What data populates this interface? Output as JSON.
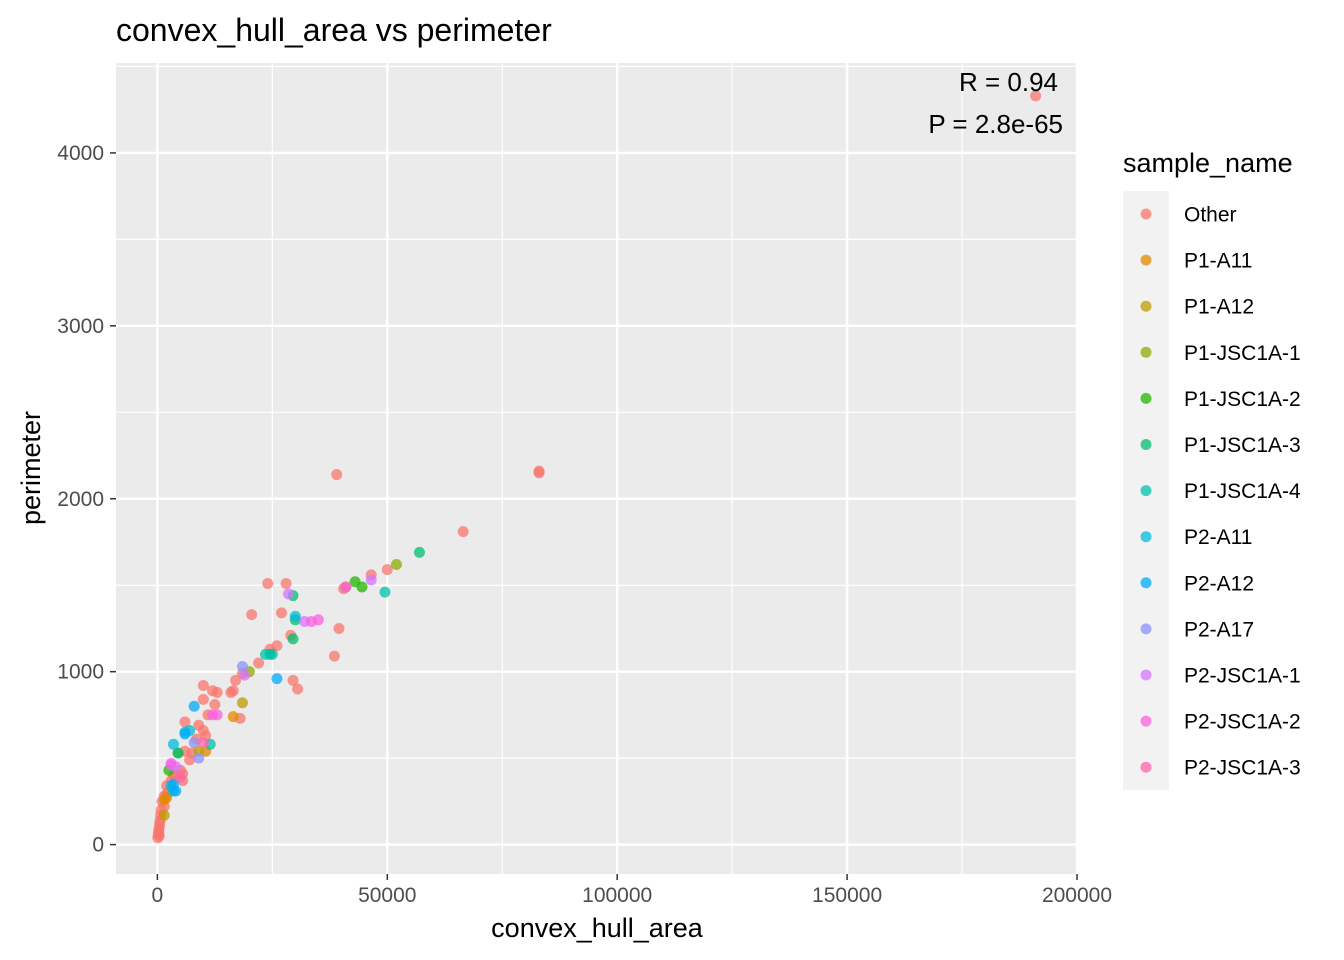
{
  "chart_data": {
    "type": "scatter",
    "title": "convex_hull_area vs perimeter",
    "xlabel": "convex_hull_area",
    "ylabel": "perimeter",
    "xlim": [
      -9000,
      200000
    ],
    "ylim": [
      -170,
      4520
    ],
    "x_ticks": [
      0,
      50000,
      100000,
      150000,
      200000
    ],
    "x_tick_labels": [
      "0",
      "50000",
      "100000",
      "150000",
      "200000"
    ],
    "y_ticks": [
      0,
      1000,
      2000,
      3000,
      4000
    ],
    "y_tick_labels": [
      "0",
      "1000",
      "2000",
      "3000",
      "4000"
    ],
    "grid": true,
    "legend_title": "sample_name",
    "legend_position": "right",
    "annotations": [
      "R = 0.94",
      "P = 2.8e-65"
    ],
    "series": [
      {
        "name": "Other",
        "color": "#F8766D",
        "points": [
          [
            191000,
            4330
          ],
          [
            83000,
            2160
          ],
          [
            83000,
            2150
          ],
          [
            66500,
            1810
          ],
          [
            50000,
            1590
          ],
          [
            46500,
            1560
          ],
          [
            39000,
            2140
          ],
          [
            39500,
            1250
          ],
          [
            38500,
            1090
          ],
          [
            40500,
            1480
          ],
          [
            28000,
            1510
          ],
          [
            24000,
            1510
          ],
          [
            27000,
            1340
          ],
          [
            29000,
            1210
          ],
          [
            26000,
            1150
          ],
          [
            24500,
            1130
          ],
          [
            29500,
            950
          ],
          [
            30500,
            900
          ],
          [
            22000,
            1050
          ],
          [
            20500,
            1330
          ],
          [
            18500,
            990
          ],
          [
            17000,
            950
          ],
          [
            16500,
            890
          ],
          [
            16000,
            880
          ],
          [
            13000,
            880
          ],
          [
            12000,
            890
          ],
          [
            18000,
            730
          ],
          [
            12500,
            810
          ],
          [
            11000,
            750
          ],
          [
            10000,
            920
          ],
          [
            10000,
            840
          ],
          [
            9000,
            690
          ],
          [
            10000,
            660
          ],
          [
            10500,
            630
          ],
          [
            8500,
            610
          ],
          [
            6000,
            710
          ],
          [
            6000,
            540
          ],
          [
            7500,
            530
          ],
          [
            7000,
            490
          ],
          [
            5000,
            430
          ],
          [
            5500,
            410
          ],
          [
            5500,
            370
          ],
          [
            4000,
            390
          ],
          [
            3500,
            400
          ],
          [
            3000,
            370
          ],
          [
            2000,
            340
          ],
          [
            2500,
            310
          ],
          [
            2000,
            290
          ],
          [
            1500,
            280
          ],
          [
            1000,
            250
          ],
          [
            1500,
            220
          ],
          [
            800,
            200
          ],
          [
            700,
            170
          ],
          [
            600,
            140
          ],
          [
            500,
            120
          ],
          [
            400,
            100
          ],
          [
            300,
            80
          ],
          [
            200,
            60
          ],
          [
            100,
            40
          ],
          [
            400,
            50
          ],
          [
            300,
            70
          ]
        ]
      },
      {
        "name": "P1-A11",
        "color": "#E18A00",
        "points": [
          [
            16500,
            740
          ],
          [
            10500,
            540
          ],
          [
            1500,
            260
          ],
          [
            2000,
            270
          ]
        ]
      },
      {
        "name": "P1-A12",
        "color": "#BE9C00",
        "points": [
          [
            18500,
            820
          ],
          [
            9000,
            540
          ],
          [
            1500,
            170
          ]
        ]
      },
      {
        "name": "P1-JSC1A-1",
        "color": "#8CAB00",
        "points": [
          [
            52000,
            1620
          ],
          [
            20000,
            1000
          ],
          [
            4500,
            530
          ]
        ]
      },
      {
        "name": "P1-JSC1A-2",
        "color": "#24B700",
        "points": [
          [
            43000,
            1520
          ],
          [
            44500,
            1490
          ],
          [
            2500,
            430
          ]
        ]
      },
      {
        "name": "P1-JSC1A-3",
        "color": "#00BE70",
        "points": [
          [
            57000,
            1690
          ],
          [
            29500,
            1440
          ],
          [
            30000,
            1300
          ],
          [
            29500,
            1190
          ],
          [
            24500,
            1100
          ],
          [
            4500,
            530
          ]
        ]
      },
      {
        "name": "P1-JSC1A-4",
        "color": "#00C1AB",
        "points": [
          [
            49500,
            1460
          ],
          [
            23500,
            1100
          ],
          [
            25000,
            1100
          ],
          [
            11500,
            580
          ]
        ]
      },
      {
        "name": "P2-A11",
        "color": "#00BBDA",
        "points": [
          [
            30000,
            1320
          ],
          [
            7000,
            660
          ],
          [
            3500,
            580
          ],
          [
            6000,
            650
          ],
          [
            3000,
            340
          ],
          [
            3500,
            310
          ]
        ]
      },
      {
        "name": "P2-A12",
        "color": "#00ACFC",
        "points": [
          [
            26000,
            960
          ],
          [
            8000,
            800
          ],
          [
            6000,
            640
          ],
          [
            4000,
            310
          ],
          [
            3500,
            350
          ]
        ]
      },
      {
        "name": "P2-A17",
        "color": "#8B93FF",
        "points": [
          [
            18500,
            1030
          ],
          [
            8000,
            590
          ],
          [
            9000,
            500
          ]
        ]
      },
      {
        "name": "P2-JSC1A-1",
        "color": "#D575FE",
        "points": [
          [
            46500,
            1530
          ],
          [
            41000,
            1490
          ],
          [
            28500,
            1450
          ],
          [
            32000,
            1290
          ],
          [
            19000,
            980
          ],
          [
            3000,
            460
          ],
          [
            4000,
            450
          ]
        ]
      },
      {
        "name": "P2-JSC1A-2",
        "color": "#F962DD",
        "points": [
          [
            35000,
            1300
          ],
          [
            33500,
            1290
          ],
          [
            12000,
            750
          ],
          [
            13000,
            750
          ],
          [
            3000,
            470
          ]
        ]
      },
      {
        "name": "P2-JSC1A-3",
        "color": "#FF65AC",
        "points": [
          [
            41000,
            1490
          ],
          [
            10000,
            590
          ],
          [
            5000,
            390
          ]
        ]
      }
    ]
  }
}
